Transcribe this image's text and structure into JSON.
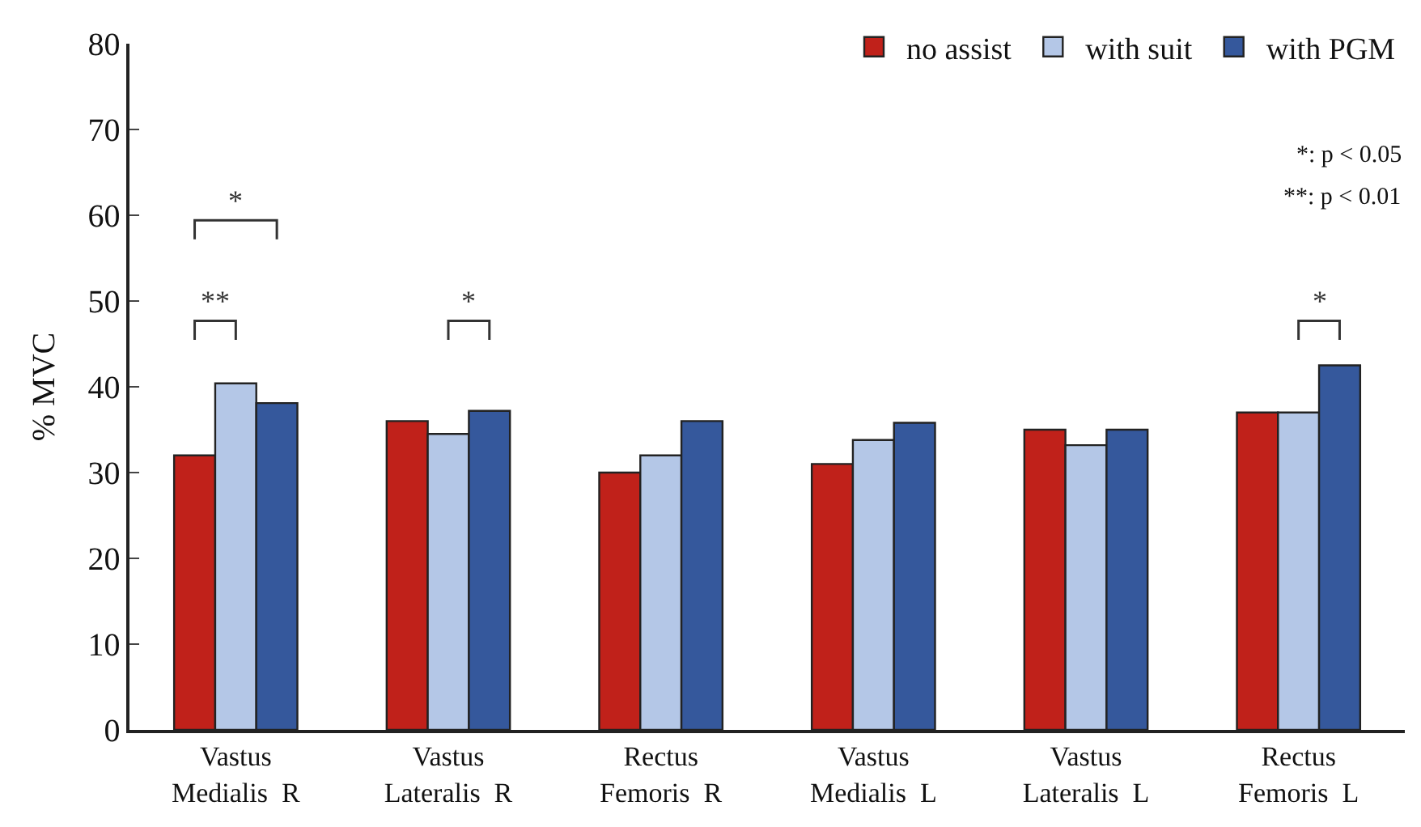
{
  "chart_data": {
    "type": "bar",
    "ylabel": "% MVC",
    "categories": [
      "Vastus\nMedialis  R",
      "Vastus\nLateralis  R",
      "Rectus\nFemoris  R",
      "Vastus\nMedialis  L",
      "Vastus\nLateralis  L",
      "Rectus\nFemoris  L"
    ],
    "series": [
      {
        "name": "no assist",
        "color": "#c0211a",
        "values": [
          32,
          36,
          30,
          31,
          35,
          37
        ]
      },
      {
        "name": "with suit",
        "color": "#b4c7e7",
        "values": [
          40.4,
          34.5,
          32,
          33.8,
          33.2,
          37
        ]
      },
      {
        "name": "with PGM",
        "color": "#35589c",
        "values": [
          38.1,
          37.2,
          36,
          35.8,
          35,
          42.5
        ]
      }
    ],
    "ylim": [
      0,
      80
    ],
    "yticks": [
      0,
      10,
      20,
      30,
      40,
      50,
      60,
      70,
      80
    ],
    "legend": "top right",
    "annotations": [
      "*",
      "**",
      "*",
      "*",
      "*: p < 0.05",
      "**: p < 0.01"
    ]
  }
}
